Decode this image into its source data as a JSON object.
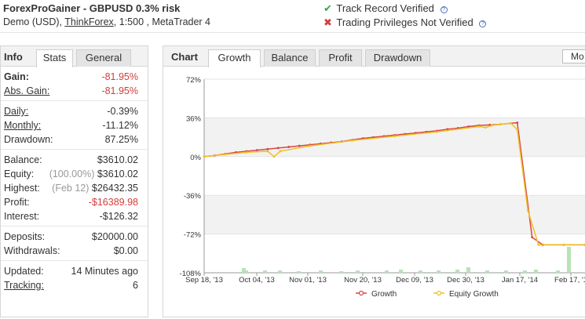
{
  "header": {
    "title": "ForexProGainer - GBPUSD 0.3% risk",
    "sub_prefix": "Demo (USD), ",
    "broker": "ThinkForex",
    "sub_suffix": ", 1:500 , MetaTrader 4",
    "track_record": "Track Record Verified",
    "trading_privileges": "Trading Privileges Not Verified",
    "help_glyph": "?",
    "ok_glyph": "✔",
    "bad_glyph": "✖"
  },
  "info": {
    "title": "Info",
    "tabs": [
      "Stats",
      "General"
    ],
    "groups": [
      [
        {
          "label": "Gain:",
          "value": "-81.95%",
          "neg": true,
          "bold": true
        },
        {
          "label": "Abs. Gain:",
          "value": "-81.95%",
          "neg": true,
          "ul": true
        }
      ],
      [
        {
          "label": "Daily:",
          "value": "-0.39%",
          "ul": true
        },
        {
          "label": "Monthly:",
          "value": "-11.12%",
          "ul": true
        },
        {
          "label": "Drawdown:",
          "value": "87.25%"
        }
      ],
      [
        {
          "label": "Balance:",
          "value": "$3610.02"
        },
        {
          "label": "Equity:",
          "note": "(100.00%)",
          "value": "$3610.02"
        },
        {
          "label": "Highest:",
          "note": "(Feb 12)",
          "value": "$26432.35"
        },
        {
          "label": "Profit:",
          "value": "-$16389.98",
          "neg": true
        },
        {
          "label": "Interest:",
          "value": "-$126.32"
        }
      ],
      [
        {
          "label": "Deposits:",
          "value": "$20000.00"
        },
        {
          "label": "Withdrawals:",
          "value": "$0.00"
        }
      ],
      [
        {
          "label": "Updated:",
          "value": "14 Minutes ago"
        },
        {
          "label": "Tracking:",
          "value": "6",
          "ul": true
        }
      ]
    ]
  },
  "chart": {
    "title": "Chart",
    "tabs": [
      "Growth",
      "Balance",
      "Profit",
      "Drawdown"
    ],
    "more_label": "Mo"
  },
  "chart_data": {
    "type": "line",
    "yticks": [
      "72%",
      "36%",
      "0%",
      "-36%",
      "-72%",
      "-108%"
    ],
    "ylim": [
      -108,
      72
    ],
    "xticks": [
      "Sep 18, '13",
      "Oct 04, '13",
      "Nov 01, '13",
      "Nov 20, '13",
      "Dec 09, '13",
      "Dec 30, '13",
      "Jan 17, '14",
      "Feb 17, '1"
    ],
    "series": [
      {
        "name": "Growth",
        "color": "#d94545",
        "points": [
          [
            0,
            0
          ],
          [
            0.05,
            1
          ],
          [
            0.1,
            2.5
          ],
          [
            0.15,
            4
          ],
          [
            0.2,
            5
          ],
          [
            0.25,
            6
          ],
          [
            0.3,
            7
          ],
          [
            0.35,
            8
          ],
          [
            0.4,
            9
          ],
          [
            0.45,
            10
          ],
          [
            0.5,
            11
          ],
          [
            0.55,
            12
          ],
          [
            0.6,
            13
          ],
          [
            0.65,
            14
          ],
          [
            0.7,
            15.5
          ],
          [
            0.75,
            17
          ],
          [
            0.8,
            18
          ],
          [
            0.85,
            19
          ],
          [
            0.9,
            20
          ],
          [
            0.95,
            21
          ],
          [
            1,
            22
          ],
          [
            1.05,
            23
          ],
          [
            1.1,
            24
          ],
          [
            1.15,
            25.5
          ],
          [
            1.2,
            26.5
          ],
          [
            1.25,
            28
          ],
          [
            1.3,
            29
          ],
          [
            1.35,
            29.5
          ],
          [
            1.4,
            30
          ],
          [
            1.45,
            31
          ],
          [
            1.48,
            31.5
          ],
          [
            1.55,
            -75
          ],
          [
            1.6,
            -82
          ],
          [
            1.7,
            -82
          ],
          [
            1.8,
            -82
          ]
        ]
      },
      {
        "name": "Equity Growth",
        "color": "#f0c020",
        "points": [
          [
            0,
            0
          ],
          [
            0.1,
            2
          ],
          [
            0.2,
            4
          ],
          [
            0.3,
            5
          ],
          [
            0.33,
            0
          ],
          [
            0.36,
            5
          ],
          [
            0.5,
            10
          ],
          [
            0.7,
            15
          ],
          [
            0.9,
            19
          ],
          [
            1.1,
            23
          ],
          [
            1.3,
            28
          ],
          [
            1.33,
            27
          ],
          [
            1.36,
            29
          ],
          [
            1.4,
            30
          ],
          [
            1.45,
            31
          ],
          [
            1.48,
            25
          ],
          [
            1.53,
            -50
          ],
          [
            1.58,
            -82
          ],
          [
            1.7,
            -82
          ],
          [
            1.8,
            -82
          ]
        ]
      }
    ],
    "legend": "bottom-center"
  }
}
